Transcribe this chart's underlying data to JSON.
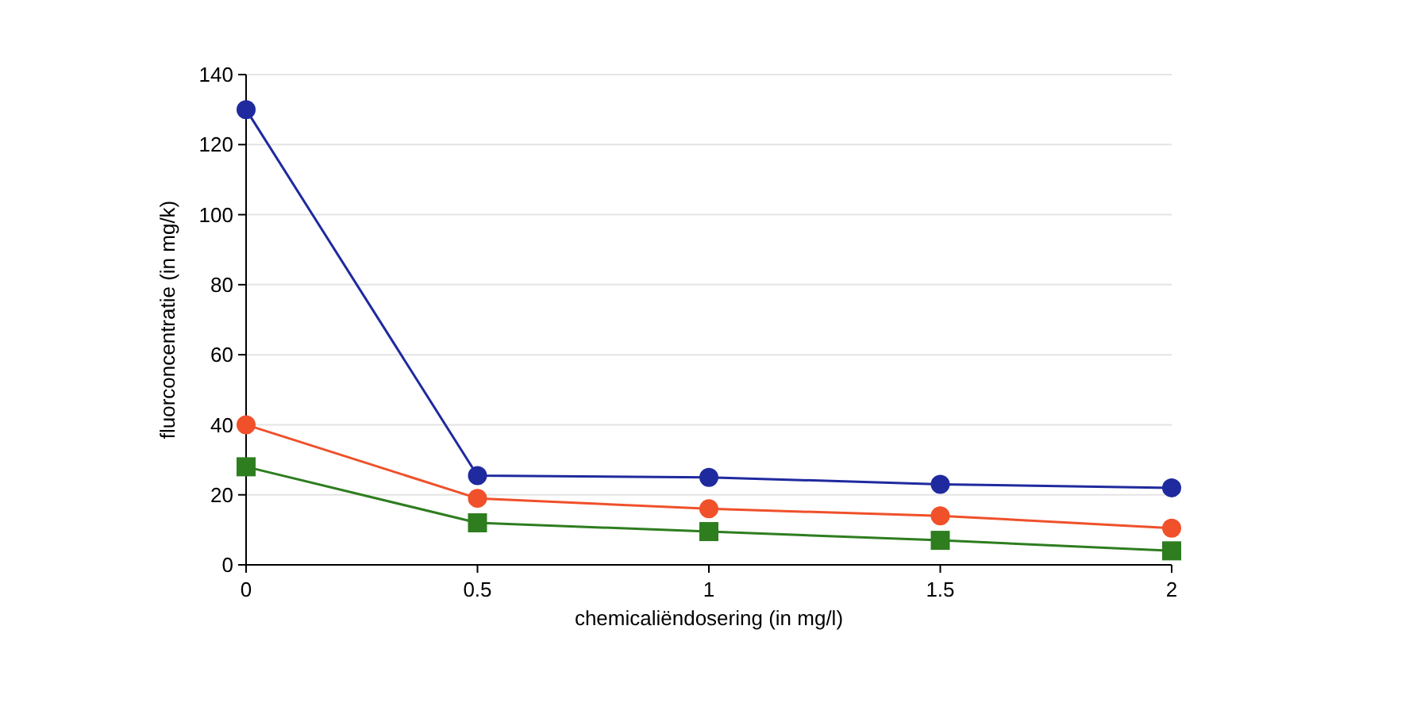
{
  "chart_data": {
    "type": "line",
    "xlabel": "chemicaliëndosering (in mg/l)",
    "ylabel": "fluorconcentratie (in mg/k)",
    "x": [
      0,
      0.5,
      1,
      1.5,
      2
    ],
    "xlim": [
      0,
      2
    ],
    "xticks": [
      0,
      0.5,
      1,
      1.5,
      2
    ],
    "ylim": [
      0,
      140
    ],
    "yticks": [
      0,
      20,
      40,
      60,
      80,
      100,
      120,
      140
    ],
    "grid": "y",
    "series": [
      {
        "color": "#1f2a9e",
        "marker": "circle",
        "values": [
          130,
          25.5,
          25,
          23,
          22
        ]
      },
      {
        "color": "#f0502a",
        "marker": "circle",
        "values": [
          40,
          19,
          16,
          14,
          10.5
        ]
      },
      {
        "color": "#2e7d1f",
        "marker": "square",
        "values": [
          28,
          12,
          9.5,
          7,
          4
        ]
      }
    ]
  }
}
